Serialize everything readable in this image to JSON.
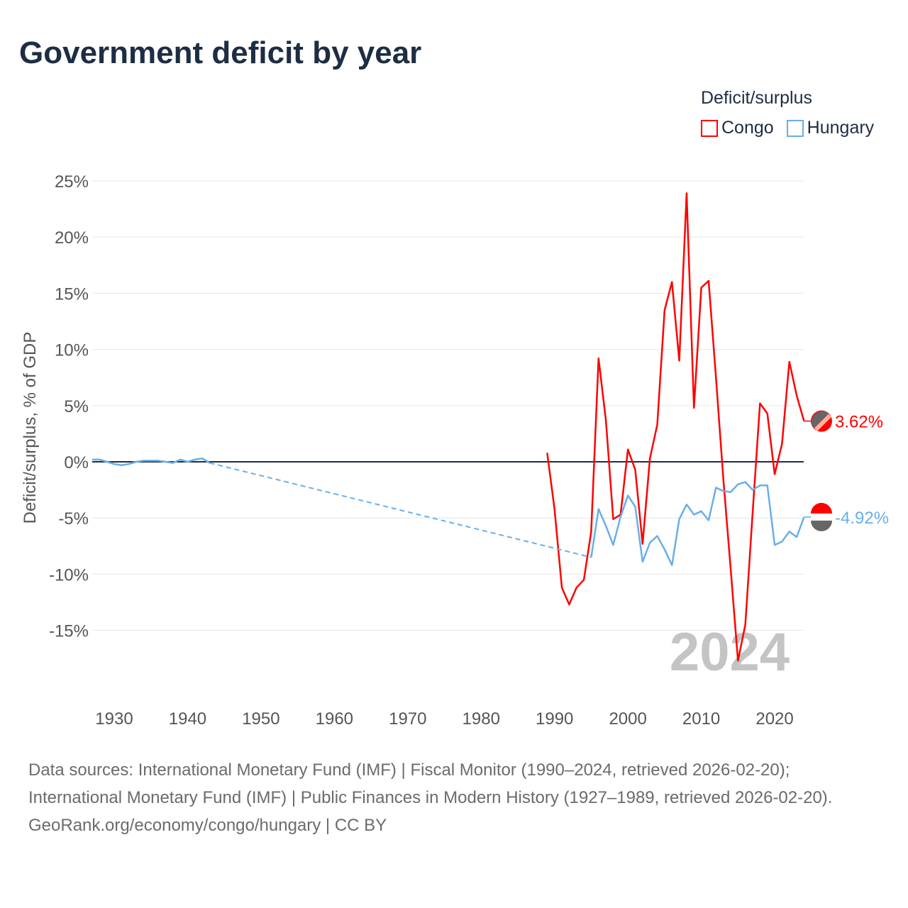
{
  "title": "Government deficit by year",
  "legend_title": "Deficit/surplus",
  "footer": {
    "sources": "Data sources: International Monetary Fund (IMF) | Fiscal Monitor (1990–2024, retrieved 2026-02-20); International Monetary Fund (IMF) | Public Finances in Modern History (1927–1989, retrieved 2026-02-20).",
    "credit": "GeoRank.org/economy/congo/hungary | CC BY"
  },
  "chart_data": {
    "type": "line",
    "title": "Government deficit by year",
    "ylabel": "Deficit/surplus, % of GDP",
    "xlabel": "",
    "ylim": [
      -18,
      25
    ],
    "xlim": [
      1927,
      2024
    ],
    "yticks": [
      25,
      20,
      15,
      10,
      5,
      0,
      -5,
      -10,
      -15
    ],
    "ytick_labels": [
      "25%",
      "20%",
      "15%",
      "10%",
      "5%",
      "0%",
      "-5%",
      "-10%",
      "-15%"
    ],
    "xticks": [
      1930,
      1940,
      1950,
      1960,
      1970,
      1980,
      1990,
      2000,
      2010,
      2020
    ],
    "xtick_labels": [
      "1930",
      "1940",
      "1950",
      "1960",
      "1970",
      "1980",
      "1990",
      "2000",
      "2010",
      "2020"
    ],
    "year_watermark": "2024",
    "legend_position": "top-right",
    "series": [
      {
        "name": "Congo",
        "color": "#ff0000",
        "end_label": "3.62%",
        "x": [
          1989,
          1990,
          1991,
          1992,
          1993,
          1994,
          1995,
          1996,
          1997,
          1998,
          1999,
          2000,
          2001,
          2002,
          2003,
          2004,
          2005,
          2006,
          2007,
          2008,
          2009,
          2010,
          2011,
          2012,
          2013,
          2014,
          2015,
          2016,
          2017,
          2018,
          2019,
          2020,
          2021,
          2022,
          2023,
          2024
        ],
        "values": [
          0.8,
          -4.2,
          -11.2,
          -12.7,
          -11.2,
          -10.5,
          -6.2,
          9.2,
          3.7,
          -5.1,
          -4.7,
          1.1,
          -0.7,
          -7.3,
          0.3,
          3.3,
          13.5,
          16.0,
          9.0,
          23.9,
          4.8,
          15.5,
          16.1,
          7.5,
          -1.5,
          -9.5,
          -17.7,
          -14.5,
          -4.5,
          5.2,
          4.3,
          -1.1,
          1.6,
          8.9,
          5.9,
          3.62
        ]
      },
      {
        "name": "Hungary",
        "color": "#6aaee8",
        "end_label": "-4.92%",
        "x": [
          1927,
          1928,
          1929,
          1930,
          1931,
          1932,
          1933,
          1934,
          1935,
          1936,
          1937,
          1938,
          1939,
          1940,
          1941,
          1942,
          1943,
          1995,
          1996,
          1997,
          1998,
          1999,
          2000,
          2001,
          2002,
          2003,
          2004,
          2005,
          2006,
          2007,
          2008,
          2009,
          2010,
          2011,
          2012,
          2013,
          2014,
          2015,
          2016,
          2017,
          2018,
          2019,
          2020,
          2021,
          2022,
          2023,
          2024
        ],
        "values": [
          0.2,
          0.2,
          0.0,
          -0.2,
          -0.3,
          -0.2,
          0.0,
          0.1,
          0.1,
          0.1,
          0.0,
          -0.1,
          0.2,
          0.0,
          0.2,
          0.3,
          -0.1,
          -8.5,
          -4.2,
          -5.7,
          -7.4,
          -4.9,
          -3.0,
          -4.0,
          -8.9,
          -7.2,
          -6.6,
          -7.8,
          -9.2,
          -5.1,
          -3.8,
          -4.7,
          -4.4,
          -5.2,
          -2.3,
          -2.6,
          -2.7,
          -2.0,
          -1.8,
          -2.5,
          -2.1,
          -2.1,
          -7.4,
          -7.1,
          -6.2,
          -6.7,
          -4.92
        ],
        "gap_after": 1943
      }
    ]
  }
}
